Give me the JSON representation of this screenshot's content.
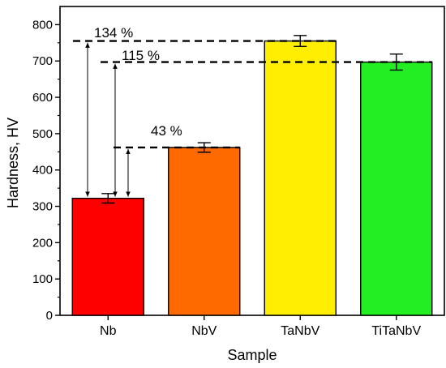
{
  "chart_data": {
    "type": "bar",
    "title": "",
    "xlabel": "Sample",
    "ylabel": "Hardness, HV",
    "ylim": [
      0,
      850
    ],
    "yticks": [
      0,
      100,
      200,
      300,
      400,
      500,
      600,
      700,
      800
    ],
    "categories": [
      "Nb",
      "NbV",
      "TaNbV",
      "TiTaNbV"
    ],
    "values": [
      322,
      462,
      755,
      697
    ],
    "errors": [
      13,
      13,
      15,
      22
    ],
    "colors": [
      "#ff0000",
      "#ff6a00",
      "#ffee00",
      "#22ee22"
    ],
    "annotations": [
      {
        "label": "134 %",
        "from": "Nb",
        "to": "TaNbV"
      },
      {
        "label": "115 %",
        "from": "Nb",
        "to": "TiTaNbV"
      },
      {
        "label": "43 %",
        "from": "Nb",
        "to": "NbV"
      }
    ]
  }
}
